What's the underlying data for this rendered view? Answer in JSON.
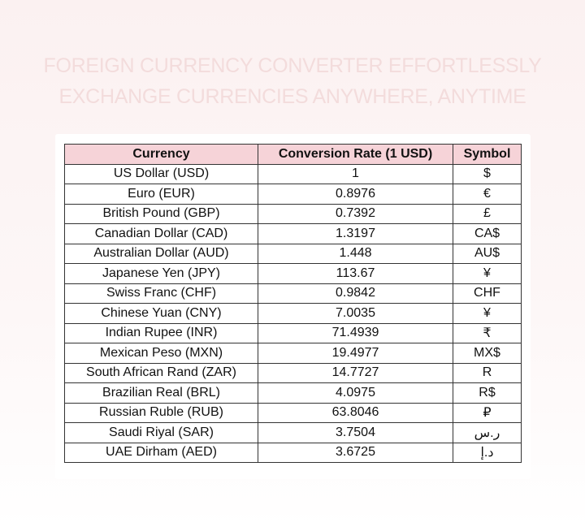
{
  "title": {
    "line1": "FOREIGN CURRENCY CONVERTER EFFORTLESSLY",
    "line2": "EXCHANGE CURRENCIES ANYWHERE, ANYTIME"
  },
  "table": {
    "headers": [
      "Currency",
      "Conversion Rate (1 USD)",
      "Symbol"
    ],
    "rows": [
      [
        "US Dollar (USD)",
        "1",
        "$"
      ],
      [
        "Euro (EUR)",
        "0.8976",
        "€"
      ],
      [
        "British Pound (GBP)",
        "0.7392",
        "£"
      ],
      [
        "Canadian Dollar (CAD)",
        "1.3197",
        "CA$"
      ],
      [
        "Australian Dollar (AUD)",
        "1.448",
        "AU$"
      ],
      [
        "Japanese Yen (JPY)",
        "113.67",
        "¥"
      ],
      [
        "Swiss Franc (CHF)",
        "0.9842",
        "CHF"
      ],
      [
        "Chinese Yuan (CNY)",
        "7.0035",
        "¥"
      ],
      [
        "Indian Rupee (INR)",
        "71.4939",
        "₹"
      ],
      [
        "Mexican Peso (MXN)",
        "19.4977",
        "MX$"
      ],
      [
        "South African Rand (ZAR)",
        "14.7727",
        "R"
      ],
      [
        "Brazilian Real (BRL)",
        "4.0975",
        "R$"
      ],
      [
        "Russian Ruble (RUB)",
        "63.8046",
        "₽"
      ],
      [
        "Saudi Riyal (SAR)",
        "3.7504",
        "ر.س"
      ],
      [
        "UAE Dirham (AED)",
        "3.6725",
        "د.إ"
      ]
    ]
  }
}
